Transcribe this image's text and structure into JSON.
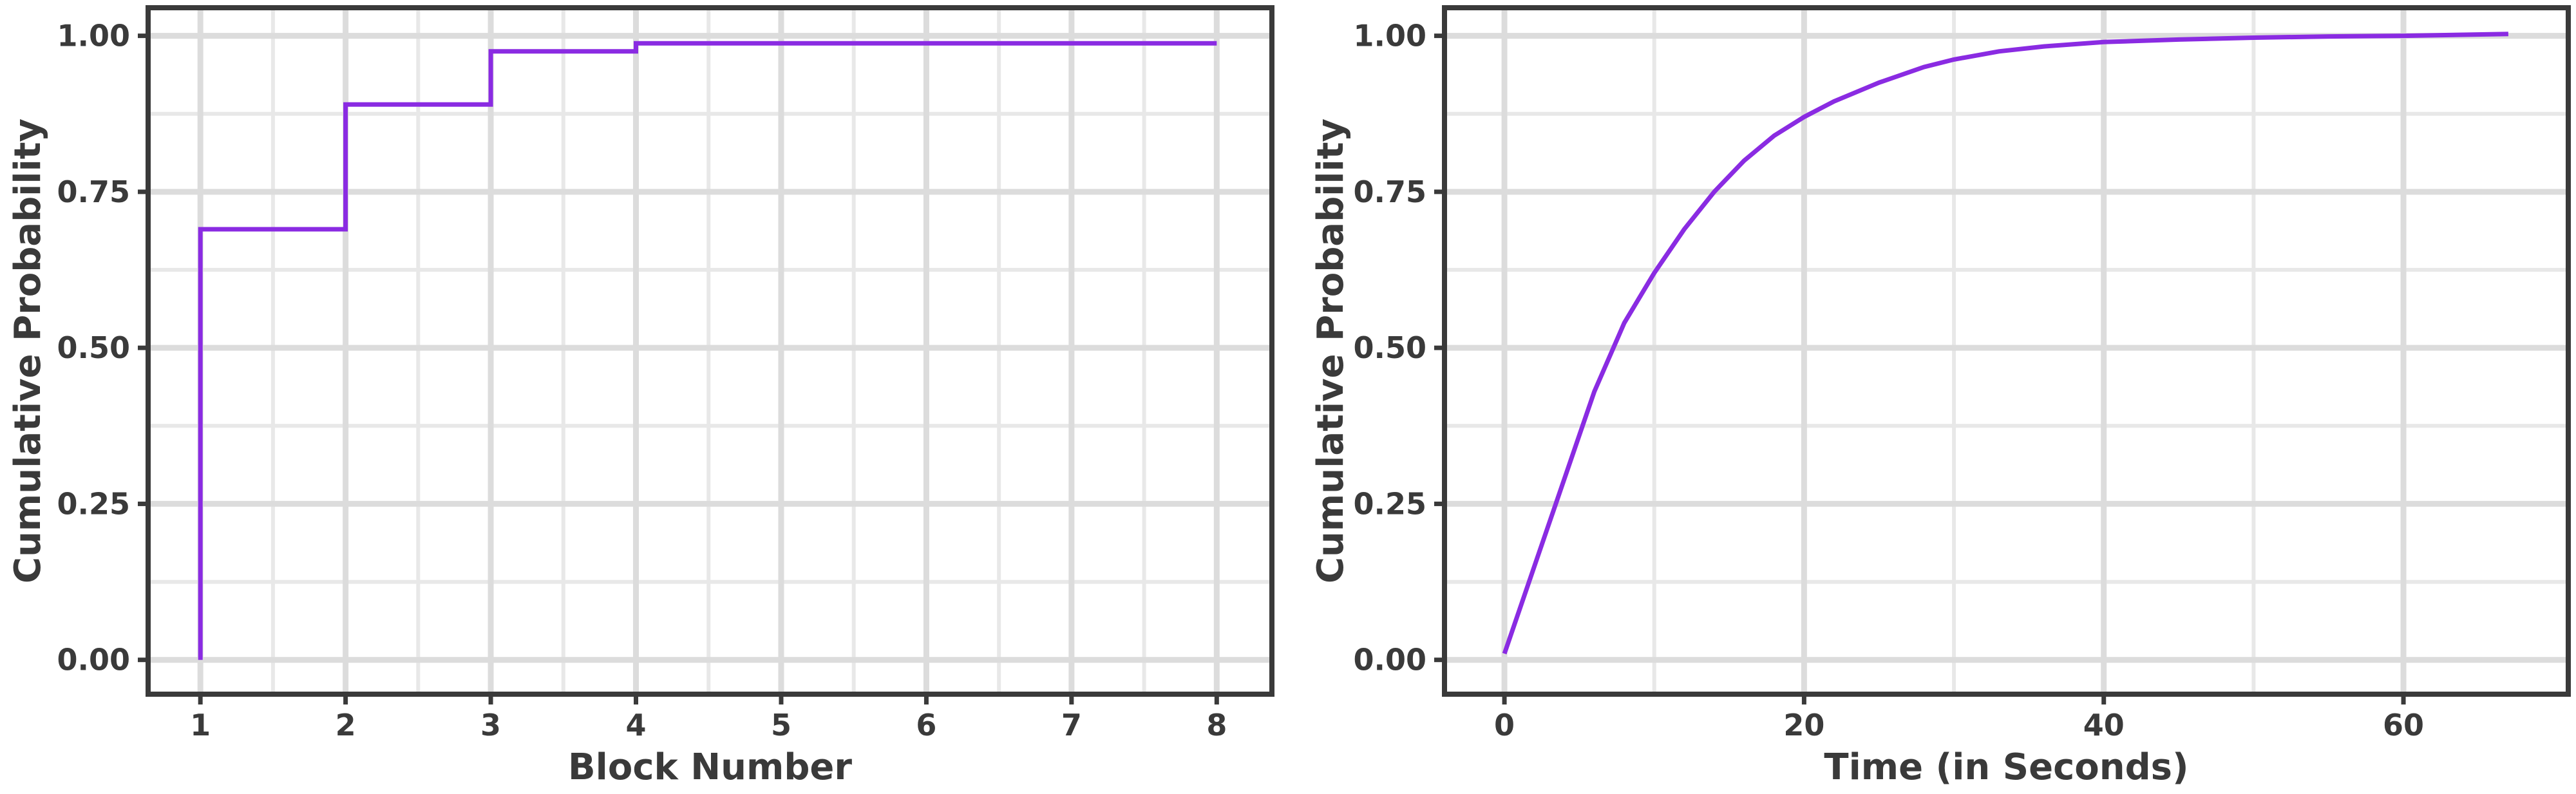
{
  "chart_data": [
    {
      "type": "line",
      "step": true,
      "xlabel": "Block Number",
      "ylabel": "Cumulative Probability",
      "xlim": [
        0.64,
        8.38
      ],
      "ylim": [
        -0.055,
        1.045
      ],
      "xticks": [
        1,
        2,
        3,
        4,
        5,
        6,
        7,
        8
      ],
      "yticks": [
        0,
        0.25,
        0.5,
        0.75,
        1
      ],
      "ytick_labels": [
        "0.00",
        "0.25",
        "0.50",
        "0.75",
        "1.00"
      ],
      "grid": true,
      "color": "#8a2be2",
      "series": [
        {
          "x": [
            1,
            1,
            2,
            2,
            3,
            3,
            4,
            4,
            8
          ],
          "y": [
            0.0,
            0.69,
            0.69,
            0.89,
            0.89,
            0.975,
            0.975,
            0.988,
            0.988
          ]
        }
      ]
    },
    {
      "type": "line",
      "xlabel": "Time (in Seconds)",
      "ylabel": "Cumulative Probability",
      "xlim": [
        -4,
        71
      ],
      "ylim": [
        -0.055,
        1.045
      ],
      "xticks": [
        0,
        20,
        40,
        60
      ],
      "yticks": [
        0,
        0.25,
        0.5,
        0.75,
        1
      ],
      "ytick_labels": [
        "0.00",
        "0.25",
        "0.50",
        "0.75",
        "1.00"
      ],
      "grid": true,
      "color": "#8a2be2",
      "series": [
        {
          "x": [
            0,
            2,
            4,
            5,
            6,
            8,
            10,
            12,
            14,
            16,
            18,
            20,
            22,
            25,
            28,
            30,
            33,
            36,
            40,
            45,
            50,
            55,
            60,
            67
          ],
          "y": [
            0.01,
            0.15,
            0.29,
            0.36,
            0.43,
            0.54,
            0.62,
            0.69,
            0.75,
            0.8,
            0.84,
            0.87,
            0.895,
            0.925,
            0.95,
            0.962,
            0.975,
            0.983,
            0.99,
            0.994,
            0.997,
            0.999,
            1.0,
            1.003
          ]
        }
      ]
    }
  ]
}
